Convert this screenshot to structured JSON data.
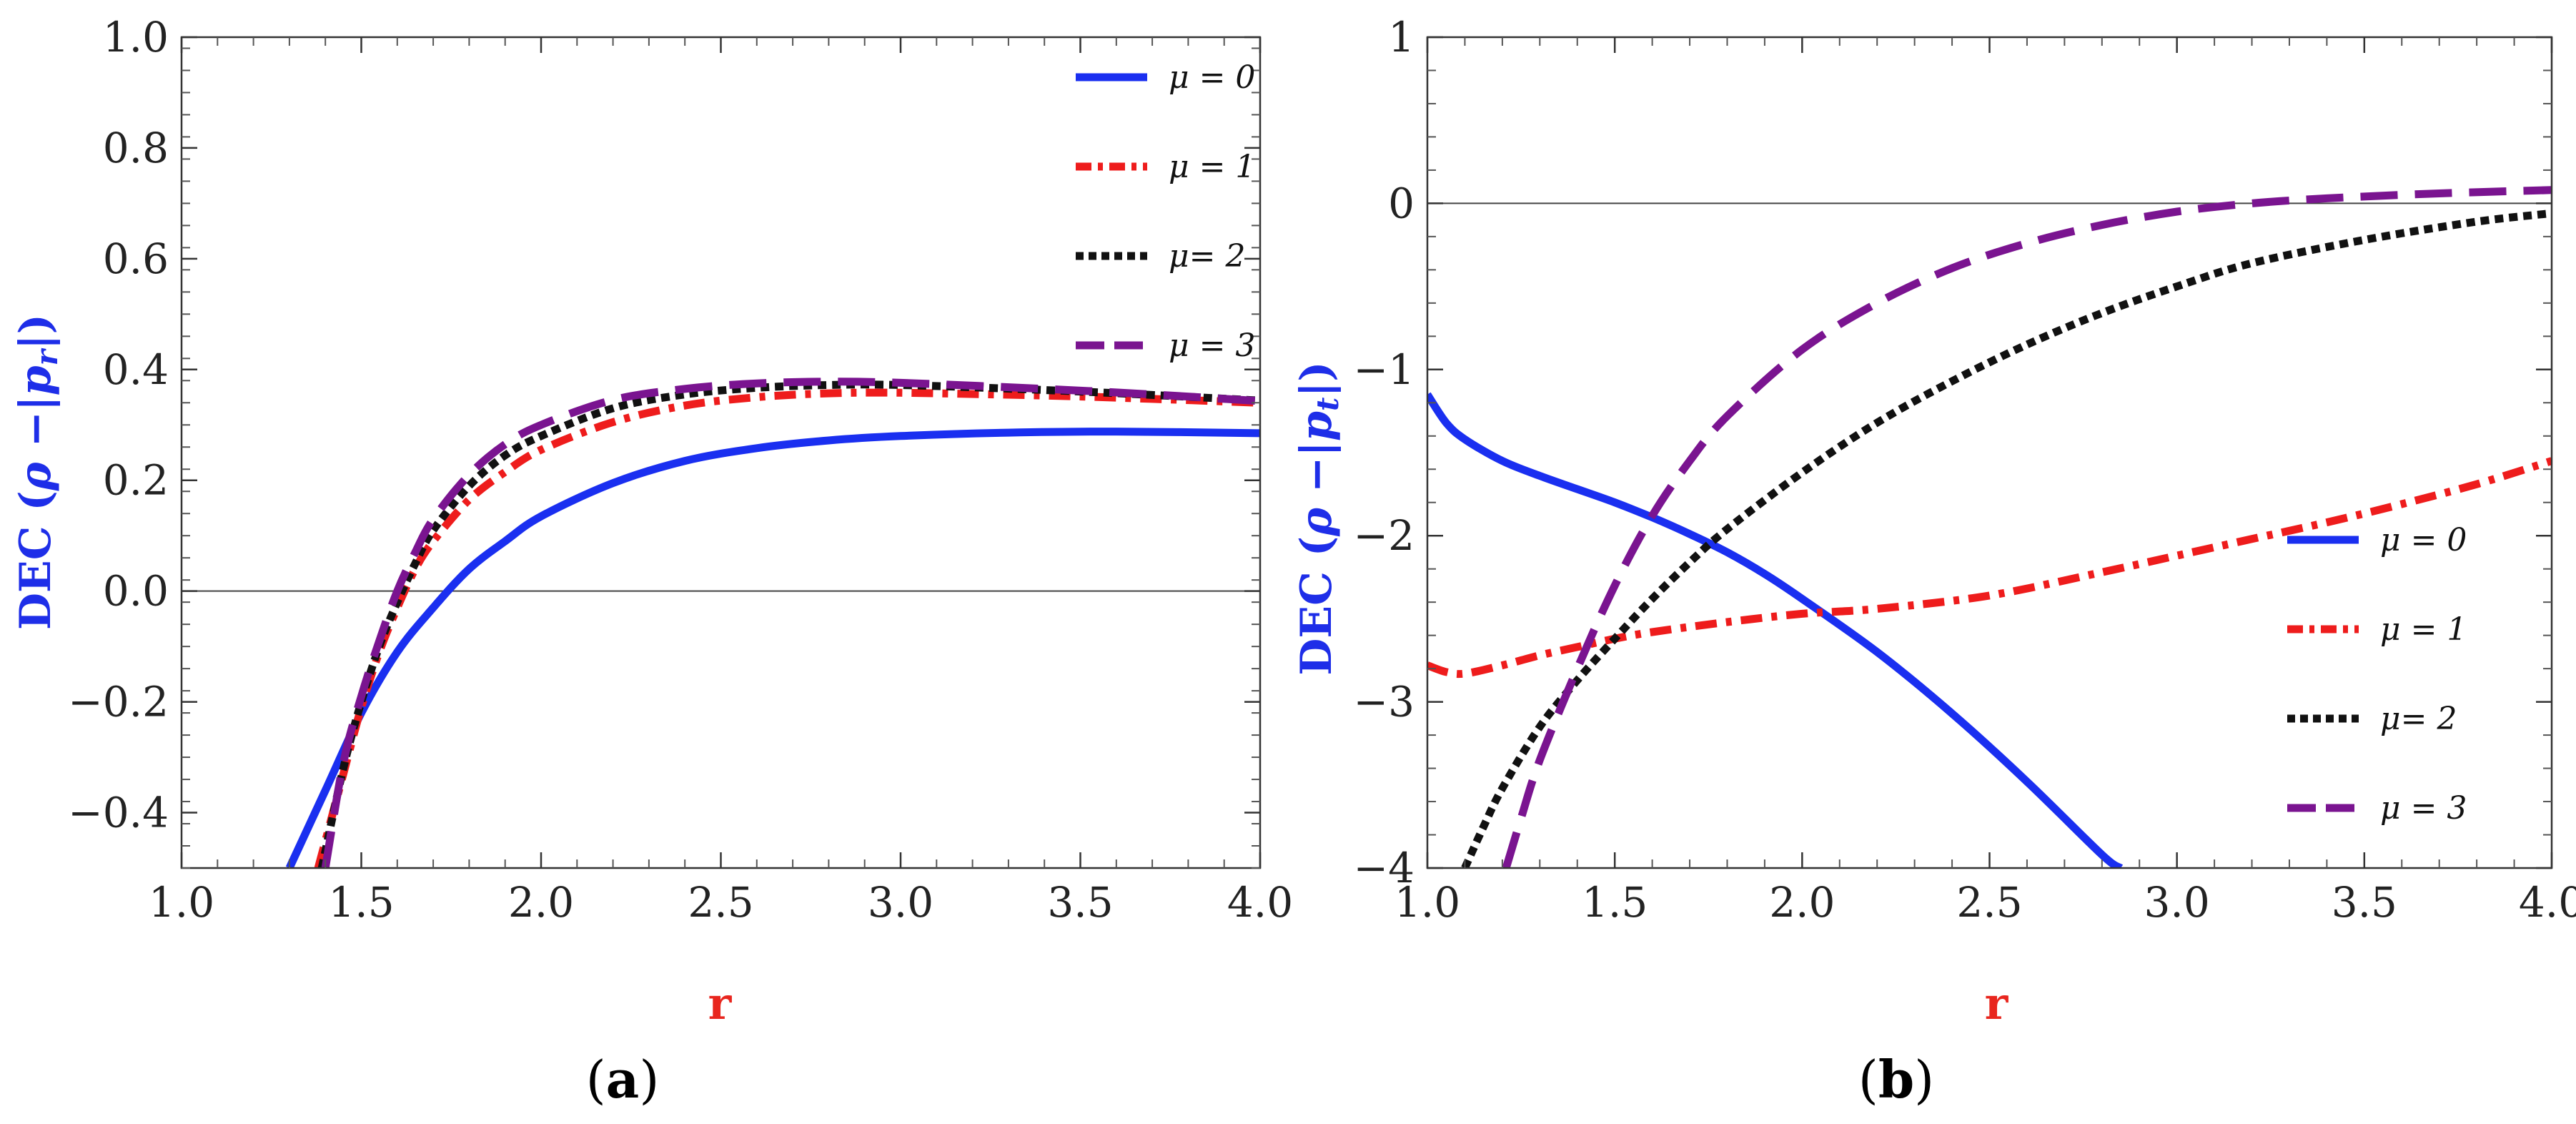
{
  "chart_data": [
    {
      "type": "line",
      "panel": "(a)",
      "caption_open": "(",
      "caption_letter": "a",
      "caption_close": ")",
      "xlabel": "r",
      "ylabel": "DEC (ρ −|p_r|)",
      "ylabel_parts": {
        "lead": "DEC (",
        "rho": "ρ",
        "mid": " −|",
        "p": "p",
        "sub": "r",
        "close": "|)"
      },
      "xlim": [
        1.0,
        4.0
      ],
      "ylim": [
        -0.5,
        1.0
      ],
      "xticks": [
        "1.0",
        "1.5",
        "2.0",
        "2.5",
        "3.0",
        "3.5",
        "4.0"
      ],
      "xtick_values": [
        1.0,
        1.5,
        2.0,
        2.5,
        3.0,
        3.5,
        4.0
      ],
      "yticks": [
        "−0.4",
        "−0.2",
        "0.0",
        "0.2",
        "0.4",
        "0.6",
        "0.8",
        "1.0"
      ],
      "ytick_values": [
        -0.4,
        -0.2,
        0.0,
        0.2,
        0.4,
        0.6,
        0.8,
        1.0
      ],
      "legend_position": "top-right",
      "reference_line_y": 0,
      "series": [
        {
          "name": "μ = 0",
          "color": "#1a2ff0",
          "style": "solid",
          "x": [
            1.3,
            1.4,
            1.5,
            1.6,
            1.7,
            1.8,
            1.9,
            2.0,
            2.2,
            2.4,
            2.6,
            2.8,
            3.0,
            3.3,
            3.6,
            4.0
          ],
          "y": [
            -0.5,
            -0.36,
            -0.22,
            -0.11,
            -0.03,
            0.04,
            0.09,
            0.135,
            0.195,
            0.235,
            0.258,
            0.272,
            0.28,
            0.286,
            0.288,
            0.285
          ]
        },
        {
          "name": "μ = 1",
          "color": "#ee1c1c",
          "style": "dashdot",
          "x": [
            1.38,
            1.45,
            1.5,
            1.55,
            1.6,
            1.65,
            1.7,
            1.8,
            1.9,
            2.0,
            2.2,
            2.4,
            2.6,
            2.8,
            3.0,
            3.4,
            3.7,
            4.0
          ],
          "y": [
            -0.5,
            -0.33,
            -0.21,
            -0.11,
            -0.03,
            0.04,
            0.09,
            0.165,
            0.215,
            0.255,
            0.305,
            0.335,
            0.35,
            0.357,
            0.358,
            0.353,
            0.347,
            0.34
          ]
        },
        {
          "name": "μ= 2",
          "color": "#111111",
          "style": "dotted",
          "x": [
            1.39,
            1.45,
            1.5,
            1.55,
            1.6,
            1.65,
            1.7,
            1.8,
            1.9,
            2.0,
            2.2,
            2.4,
            2.6,
            2.8,
            3.0,
            3.4,
            3.7,
            4.0
          ],
          "y": [
            -0.5,
            -0.32,
            -0.2,
            -0.1,
            -0.02,
            0.05,
            0.11,
            0.19,
            0.245,
            0.28,
            0.33,
            0.355,
            0.367,
            0.372,
            0.372,
            0.363,
            0.354,
            0.344
          ]
        },
        {
          "name": "μ = 3",
          "color": "#7a1490",
          "style": "dashed",
          "x": [
            1.4,
            1.45,
            1.5,
            1.55,
            1.6,
            1.65,
            1.7,
            1.8,
            1.9,
            2.0,
            2.2,
            2.4,
            2.6,
            2.8,
            3.0,
            3.4,
            3.7,
            4.0
          ],
          "y": [
            -0.5,
            -0.31,
            -0.19,
            -0.09,
            0.0,
            0.07,
            0.13,
            0.21,
            0.265,
            0.3,
            0.345,
            0.365,
            0.375,
            0.378,
            0.376,
            0.365,
            0.355,
            0.343
          ]
        }
      ]
    },
    {
      "type": "line",
      "panel": "(b)",
      "caption_open": "(",
      "caption_letter": "b",
      "caption_close": ")",
      "xlabel": "r",
      "ylabel": "DEC (ρ −|p_t|)",
      "ylabel_parts": {
        "lead": "DEC (",
        "rho": "ρ",
        "mid": " −|",
        "p": "p",
        "sub": "t",
        "close": "|)"
      },
      "xlim": [
        1.0,
        4.0
      ],
      "ylim": [
        -4,
        1
      ],
      "xticks": [
        "1.0",
        "1.5",
        "2.0",
        "2.5",
        "3.0",
        "3.5",
        "4.0"
      ],
      "xtick_values": [
        1.0,
        1.5,
        2.0,
        2.5,
        3.0,
        3.5,
        4.0
      ],
      "yticks": [
        "−4",
        "−3",
        "−2",
        "−1",
        "0",
        "1"
      ],
      "ytick_values": [
        -4,
        -3,
        -2,
        -1,
        0,
        1
      ],
      "legend_position": "center-right",
      "reference_line_y": 0,
      "series": [
        {
          "name": "μ = 0",
          "color": "#1a2ff0",
          "style": "solid",
          "x": [
            1.0,
            1.05,
            1.1,
            1.2,
            1.3,
            1.4,
            1.5,
            1.6,
            1.7,
            1.8,
            1.9,
            2.0,
            2.2,
            2.4,
            2.6,
            2.8,
            2.85
          ],
          "y": [
            -1.15,
            -1.32,
            -1.42,
            -1.55,
            -1.64,
            -1.72,
            -1.8,
            -1.89,
            -1.99,
            -2.1,
            -2.23,
            -2.38,
            -2.7,
            -3.07,
            -3.48,
            -3.92,
            -4.0
          ]
        },
        {
          "name": "μ = 1",
          "color": "#ee1c1c",
          "style": "dashdot",
          "x": [
            1.0,
            1.05,
            1.1,
            1.2,
            1.3,
            1.4,
            1.5,
            1.6,
            1.8,
            2.0,
            2.2,
            2.5,
            2.8,
            3.0,
            3.2,
            3.4,
            3.6,
            3.8,
            4.0
          ],
          "y": [
            -2.78,
            -2.82,
            -2.83,
            -2.78,
            -2.72,
            -2.67,
            -2.62,
            -2.58,
            -2.52,
            -2.47,
            -2.44,
            -2.36,
            -2.22,
            -2.12,
            -2.02,
            -1.92,
            -1.81,
            -1.69,
            -1.55
          ]
        },
        {
          "name": "μ= 2",
          "color": "#111111",
          "style": "dotted",
          "x": [
            1.1,
            1.15,
            1.2,
            1.3,
            1.4,
            1.5,
            1.6,
            1.7,
            1.8,
            2.0,
            2.2,
            2.4,
            2.6,
            2.8,
            3.0,
            3.2,
            3.5,
            3.8,
            4.0
          ],
          "y": [
            -4.0,
            -3.75,
            -3.52,
            -3.15,
            -2.87,
            -2.62,
            -2.38,
            -2.16,
            -1.96,
            -1.62,
            -1.32,
            -1.07,
            -0.85,
            -0.66,
            -0.5,
            -0.36,
            -0.22,
            -0.11,
            -0.06
          ]
        },
        {
          "name": "μ = 3",
          "color": "#7a1490",
          "style": "dashed",
          "x": [
            1.21,
            1.25,
            1.3,
            1.4,
            1.5,
            1.6,
            1.7,
            1.8,
            2.0,
            2.2,
            2.4,
            2.6,
            2.8,
            3.0,
            3.2,
            3.4,
            3.7,
            4.0
          ],
          "y": [
            -4.0,
            -3.7,
            -3.35,
            -2.8,
            -2.3,
            -1.88,
            -1.55,
            -1.28,
            -0.88,
            -0.6,
            -0.39,
            -0.24,
            -0.13,
            -0.05,
            0.0,
            0.03,
            0.06,
            0.08
          ]
        }
      ]
    }
  ]
}
